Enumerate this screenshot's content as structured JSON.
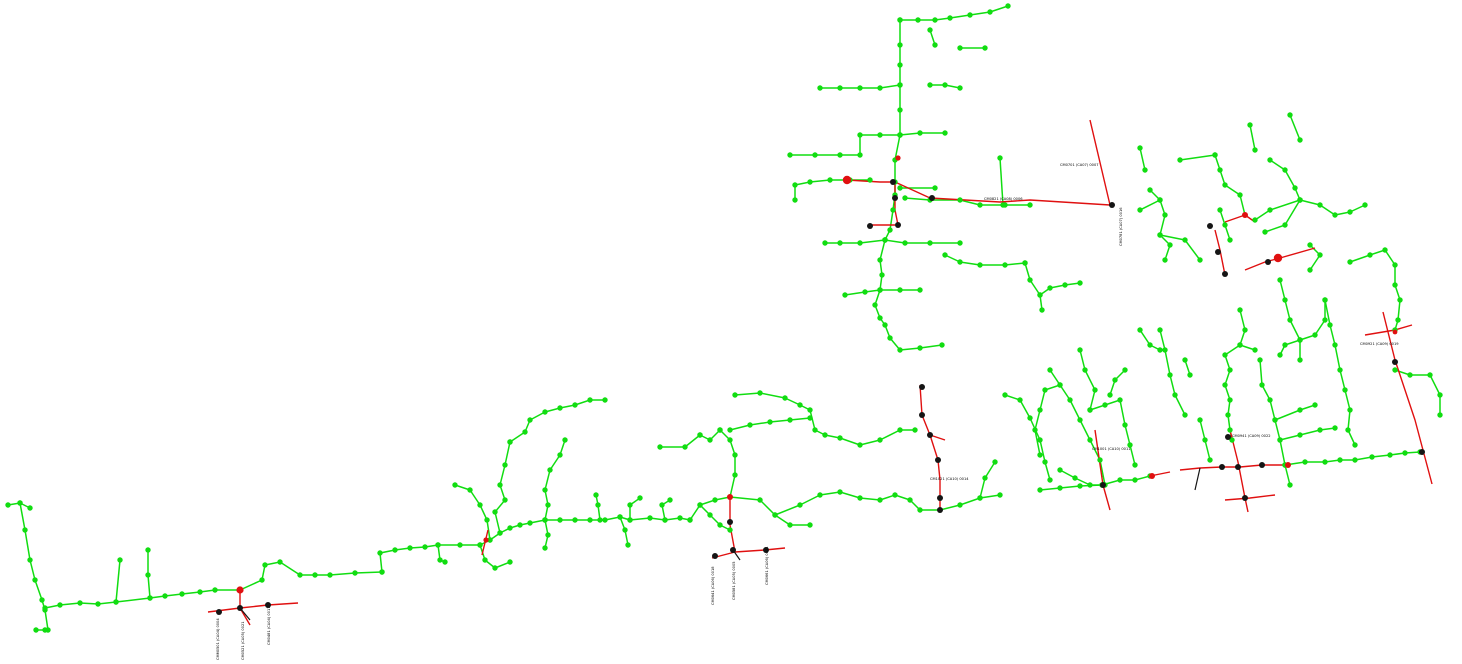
{
  "colors": {
    "background": "#ffffff",
    "feeder_line": "#11dd11",
    "feeder_node": "#11dd11",
    "tie_line": "#e01010",
    "switch_node": "#e01010",
    "junction_node": "#151515",
    "label_text": "#000000"
  },
  "labels": [
    {
      "id": "l1",
      "text": "CMM0501 (CA04) 0004"
    },
    {
      "id": "l2",
      "text": "CM0521 (CA05) 0021"
    },
    {
      "id": "l3",
      "text": "CM0481 (CA04) 0017"
    },
    {
      "id": "l4",
      "text": "CM0641 (CA06) 0018"
    },
    {
      "id": "l5",
      "text": "CM0581 (CA05) 0005"
    },
    {
      "id": "l6",
      "text": "CM0661 (CA06) 0031"
    },
    {
      "id": "l7",
      "text": "CM0701 (CA07) 0007"
    },
    {
      "id": "l8",
      "text": "CM0781 (CA07) 0016"
    },
    {
      "id": "l9",
      "text": "CM0821 (CA08) 0006"
    },
    {
      "id": "l10",
      "text": "CM0921 (CA09) 0019"
    },
    {
      "id": "l11",
      "text": "CM0941 (CA09) 0022"
    },
    {
      "id": "l12",
      "text": "CM1001 (CA10) 0011"
    },
    {
      "id": "l13",
      "text": "CM1021 (CA10) 0014"
    }
  ]
}
